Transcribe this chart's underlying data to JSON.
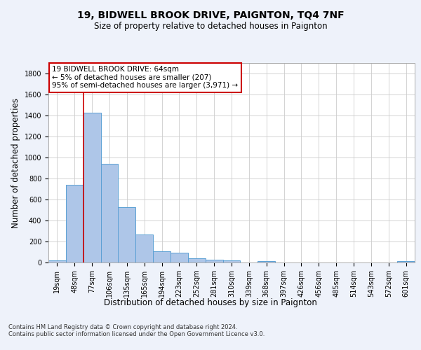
{
  "title": "19, BIDWELL BROOK DRIVE, PAIGNTON, TQ4 7NF",
  "subtitle": "Size of property relative to detached houses in Paignton",
  "xlabel": "Distribution of detached houses by size in Paignton",
  "ylabel": "Number of detached properties",
  "bar_labels": [
    "19sqm",
    "48sqm",
    "77sqm",
    "106sqm",
    "135sqm",
    "165sqm",
    "194sqm",
    "223sqm",
    "252sqm",
    "281sqm",
    "310sqm",
    "339sqm",
    "368sqm",
    "397sqm",
    "426sqm",
    "456sqm",
    "485sqm",
    "514sqm",
    "543sqm",
    "572sqm",
    "601sqm"
  ],
  "bar_values": [
    22,
    740,
    1430,
    940,
    530,
    265,
    105,
    95,
    40,
    28,
    17,
    0,
    14,
    0,
    0,
    0,
    0,
    0,
    0,
    0,
    14
  ],
  "bar_color": "#aec6e8",
  "bar_edge_color": "#5a9fd4",
  "red_line_x": 1.5,
  "annotation_box_text": "19 BIDWELL BROOK DRIVE: 64sqm\n← 5% of detached houses are smaller (207)\n95% of semi-detached houses are larger (3,971) →",
  "ylim": [
    0,
    1900
  ],
  "yticks": [
    0,
    200,
    400,
    600,
    800,
    1000,
    1200,
    1400,
    1600,
    1800
  ],
  "footer": "Contains HM Land Registry data © Crown copyright and database right 2024.\nContains public sector information licensed under the Open Government Licence v3.0.",
  "background_color": "#eef2fa",
  "plot_background": "#ffffff",
  "grid_color": "#cccccc",
  "annotation_box_color": "#ffffff",
  "annotation_box_edge": "#cc0000",
  "red_line_color": "#cc0000",
  "title_fontsize": 10,
  "subtitle_fontsize": 8.5,
  "tick_fontsize": 7,
  "ylabel_fontsize": 8.5,
  "xlabel_fontsize": 8.5,
  "annotation_fontsize": 7.5,
  "footer_fontsize": 6
}
